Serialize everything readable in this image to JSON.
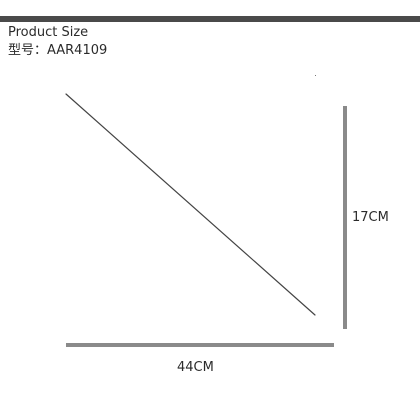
{
  "header": {
    "title": "Product Size",
    "model": "型号：AAR4109"
  },
  "dimensions": {
    "width_label": "44CM",
    "height_label": "17CM"
  },
  "colors": {
    "top_bar": "#4a4a4a",
    "dimension_bar": "#8a8a8a",
    "diagonal_line": "#444444",
    "text": "#2b2b2b"
  }
}
